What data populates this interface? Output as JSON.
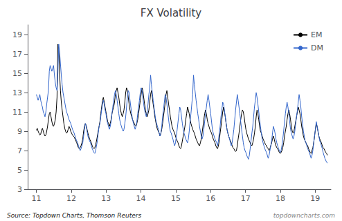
{
  "chart_data": {
    "type": "line",
    "title": "FX Volatility",
    "annotations": [
      "Source: Topdown Charts, Thomson Reuters",
      "topdowncharts.com"
    ],
    "xlim": [
      10.75,
      19.45
    ],
    "ylim": [
      3,
      20
    ],
    "xticks": [
      11,
      12,
      13,
      14,
      15,
      16,
      17,
      18,
      19
    ],
    "yticks": [
      3,
      5,
      7,
      9,
      11,
      13,
      15,
      17,
      19
    ],
    "grid": false,
    "legend": "upper right",
    "x": [
      11,
      11.0246,
      11.0493,
      11.0739,
      11.0985,
      11.1232,
      11.1478,
      11.1724,
      11.1971,
      11.2217,
      11.2463,
      11.2709,
      11.2956,
      11.3202,
      11.3448,
      11.3695,
      11.3941,
      11.4187,
      11.4434,
      11.468,
      11.4926,
      11.5173,
      11.5419,
      11.5665,
      11.5912,
      11.6158,
      11.6404,
      11.665,
      11.6897,
      11.7143,
      11.7389,
      11.7636,
      11.7882,
      11.8128,
      11.8375,
      11.8621,
      11.8867,
      11.9114,
      11.936,
      11.9606,
      11.9853,
      12.0099,
      12.0345,
      12.0591,
      12.0838,
      12.1084,
      12.133,
      12.1577,
      12.1823,
      12.2069,
      12.2316,
      12.2562,
      12.2808,
      12.3055,
      12.3301,
      12.3547,
      12.3794,
      12.404,
      12.4286,
      12.4532,
      12.4779,
      12.5025,
      12.5271,
      12.5518,
      12.5764,
      12.601,
      12.6257,
      12.6503,
      12.6749,
      12.6996,
      12.7242,
      12.7488,
      12.7735,
      12.7981,
      12.8227,
      12.8473,
      12.872,
      12.8966,
      12.9212,
      12.9459,
      12.9705,
      12.9951,
      13.0198,
      13.0444,
      13.069,
      13.0937,
      13.1183,
      13.1429,
      13.1676,
      13.1922,
      13.2168,
      13.2414,
      13.2661,
      13.2907,
      13.3153,
      13.34,
      13.3646,
      13.3892,
      13.4139,
      13.4385,
      13.4631,
      13.4878,
      13.5124,
      13.537,
      13.5617,
      13.5863,
      13.6109,
      13.6355,
      13.6602,
      13.6848,
      13.7094,
      13.7341,
      13.7587,
      13.7833,
      13.808,
      13.8326,
      13.8572,
      13.8819,
      13.9065,
      13.9311,
      13.9558,
      13.9804,
      14.005,
      14.0296,
      14.0543,
      14.0789,
      14.1035,
      14.1282,
      14.1528,
      14.1774,
      14.2021,
      14.2267,
      14.2513,
      14.276,
      14.3006,
      14.3252,
      14.3499,
      14.3745,
      14.3991,
      14.4237,
      14.4484,
      14.473,
      14.4976,
      14.5223,
      14.5469,
      14.5715,
      14.5962,
      14.6208,
      14.6454,
      14.6701,
      14.6947,
      14.7193,
      14.744,
      14.7686,
      14.7932,
      14.8178,
      14.8425,
      14.8671,
      14.8917,
      14.9164,
      14.941,
      14.9656,
      14.9903,
      15.0149,
      15.0395,
      15.0642,
      15.0888,
      15.1134,
      15.1381,
      15.1627,
      15.1873,
      15.2119,
      15.2366,
      15.2612,
      15.2858,
      15.3105,
      15.3351,
      15.3597,
      15.3844,
      15.409,
      15.4336,
      15.4583,
      15.4829,
      15.5075,
      15.5322,
      15.5568,
      15.5814,
      15.606,
      15.6307,
      15.6553,
      15.6799,
      15.7046,
      15.7292,
      15.7538,
      15.7785,
      15.8031,
      15.8277,
      15.8524,
      15.877,
      15.9016,
      15.9263,
      15.9509,
      15.9755,
      16.0001,
      16.0248,
      16.0494,
      16.074,
      16.0987,
      16.1233,
      16.1479,
      16.1726,
      16.1972,
      16.2218,
      16.2465,
      16.2711,
      16.2957,
      16.3204,
      16.345,
      16.3696,
      16.3942,
      16.4189,
      16.4435,
      16.4681,
      16.4928,
      16.5174,
      16.542,
      16.5667,
      16.5913,
      16.6159,
      16.6406,
      16.6652,
      16.6898,
      16.7145,
      16.7391,
      16.7637,
      16.7883,
      16.813,
      16.8376,
      16.8622,
      16.8869,
      16.9115,
      16.9361,
      16.9608,
      16.9854,
      17.01,
      17.0347,
      17.0593,
      17.0839,
      17.1086,
      17.1332,
      17.1578,
      17.1824,
      17.2071,
      17.2317,
      17.2563,
      17.281,
      17.3056,
      17.3302,
      17.3549,
      17.3795,
      17.4041,
      17.4288,
      17.4534,
      17.478,
      17.5027,
      17.5273,
      17.5519,
      17.5765,
      17.6012,
      17.6258,
      17.6504,
      17.6751,
      17.6997,
      17.7243,
      17.749,
      17.7736,
      17.7982,
      17.8229,
      17.8475,
      17.8721,
      17.8968,
      17.9214,
      17.946,
      17.9706,
      17.9953,
      18.0199,
      18.0445,
      18.0692,
      18.0938,
      18.1184,
      18.1431,
      18.1677,
      18.1923,
      18.217,
      18.2416,
      18.2662,
      18.2909,
      18.3155,
      18.3401,
      18.3647,
      18.3894,
      18.414,
      18.4386,
      18.4633,
      18.4879,
      18.5125,
      18.5372,
      18.5618,
      18.5864,
      18.6111,
      18.6357,
      18.6603,
      18.685,
      18.7096,
      18.7342,
      18.7588,
      18.7835,
      18.8081,
      18.8327,
      18.8574,
      18.882,
      18.9066,
      18.9313,
      18.9559,
      18.9805,
      19.0052,
      19.0298,
      19.0544,
      19.0791,
      19.1037,
      19.1283,
      19.1529,
      19.1776,
      19.2022,
      19.2268,
      19.2515,
      19.2761,
      19.3007,
      19.3254,
      19.35
    ],
    "series": [
      {
        "name": "EM",
        "color": "#000000",
        "values": [
          9.1,
          9.3,
          9.0,
          8.8,
          8.6,
          8.7,
          9.1,
          9.3,
          9.0,
          8.7,
          8.5,
          8.6,
          9.0,
          9.5,
          10.2,
          10.8,
          11.0,
          10.5,
          10.0,
          9.6,
          9.5,
          9.8,
          10.2,
          11.0,
          12.5,
          18.0,
          17.5,
          15.0,
          13.2,
          12.0,
          11.2,
          10.5,
          9.8,
          9.3,
          9.0,
          8.8,
          8.9,
          9.2,
          9.5,
          9.3,
          9.0,
          8.8,
          8.6,
          8.5,
          8.4,
          8.2,
          8.0,
          7.8,
          7.5,
          7.3,
          7.2,
          7.3,
          7.5,
          7.8,
          8.2,
          9.0,
          9.5,
          9.8,
          9.6,
          9.2,
          8.8,
          8.5,
          8.2,
          8.0,
          7.8,
          7.5,
          7.3,
          7.2,
          7.3,
          7.6,
          8.0,
          8.5,
          9.0,
          9.5,
          10.0,
          10.8,
          11.5,
          12.2,
          12.5,
          12.0,
          11.5,
          11.0,
          10.5,
          10.0,
          9.8,
          9.5,
          9.8,
          10.2,
          10.8,
          11.2,
          11.5,
          12.0,
          12.8,
          13.2,
          13.5,
          13.0,
          12.5,
          11.8,
          11.2,
          10.8,
          10.5,
          10.8,
          11.2,
          12.0,
          13.0,
          13.5,
          13.2,
          12.5,
          11.8,
          11.2,
          10.8,
          10.5,
          10.2,
          10.0,
          9.8,
          9.6,
          9.5,
          9.8,
          10.2,
          10.8,
          11.5,
          12.2,
          12.8,
          13.5,
          13.2,
          12.5,
          11.8,
          11.2,
          10.8,
          10.5,
          10.8,
          11.2,
          12.0,
          12.8,
          13.2,
          12.5,
          11.8,
          11.2,
          10.5,
          10.0,
          9.5,
          9.2,
          9.0,
          8.8,
          8.5,
          8.8,
          9.2,
          9.8,
          10.5,
          11.2,
          12.0,
          12.8,
          13.2,
          12.5,
          11.8,
          11.2,
          10.5,
          10.0,
          9.5,
          9.2,
          9.0,
          8.8,
          8.5,
          8.2,
          8.0,
          7.8,
          7.5,
          7.3,
          7.2,
          7.5,
          8.0,
          8.5,
          9.0,
          9.5,
          10.2,
          10.8,
          11.5,
          11.2,
          10.8,
          10.2,
          9.8,
          9.5,
          9.2,
          9.0,
          8.8,
          8.5,
          8.2,
          8.0,
          7.8,
          7.6,
          7.5,
          7.8,
          8.2,
          8.8,
          9.5,
          10.2,
          10.8,
          11.2,
          10.8,
          10.2,
          9.8,
          9.5,
          9.2,
          9.0,
          8.8,
          8.5,
          8.2,
          8.0,
          7.8,
          7.5,
          7.3,
          7.2,
          7.5,
          8.0,
          8.8,
          9.5,
          10.2,
          11.0,
          11.5,
          11.0,
          10.5,
          9.8,
          9.2,
          8.8,
          8.5,
          8.2,
          8.0,
          7.8,
          7.5,
          7.3,
          7.2,
          7.0,
          6.9,
          7.0,
          7.5,
          8.2,
          8.8,
          9.5,
          10.2,
          10.8,
          11.2,
          11.0,
          10.5,
          9.8,
          9.2,
          8.8,
          8.5,
          8.2,
          8.0,
          7.8,
          7.6,
          7.5,
          7.8,
          8.2,
          8.8,
          9.5,
          10.5,
          11.2,
          10.8,
          10.2,
          9.5,
          9.0,
          8.8,
          8.5,
          8.2,
          8.0,
          7.8,
          7.6,
          7.5,
          7.3,
          7.2,
          7.0,
          7.2,
          7.5,
          7.8,
          8.2,
          8.5,
          8.2,
          7.8,
          7.5,
          7.3,
          7.2,
          7.0,
          6.8,
          6.7,
          6.8,
          7.0,
          7.3,
          7.8,
          8.5,
          9.0,
          9.5,
          10.2,
          10.8,
          11.2,
          10.8,
          10.2,
          9.5,
          9.0,
          8.8,
          9.0,
          9.5,
          10.0,
          10.5,
          11.0,
          11.5,
          11.2,
          10.8,
          10.2,
          9.5,
          9.0,
          8.5,
          8.2,
          8.0,
          7.8,
          7.6,
          7.5,
          7.2,
          7.0,
          6.8,
          6.7,
          7.0,
          7.3,
          7.8,
          8.5,
          9.2,
          9.8,
          9.5,
          9.0,
          8.5,
          8.2,
          8.0,
          7.8,
          7.5,
          7.3,
          7.2,
          7.0,
          6.8,
          6.7,
          6.5
        ]
      },
      {
        "name": "DM",
        "color": "#3366cc",
        "values": [
          12.8,
          12.5,
          12.2,
          12.5,
          12.8,
          12.2,
          11.8,
          11.5,
          11.0,
          10.8,
          10.5,
          11.0,
          11.8,
          12.5,
          13.2,
          15.2,
          15.8,
          15.5,
          15.2,
          15.5,
          15.8,
          14.8,
          14.0,
          13.5,
          13.2,
          15.0,
          18.0,
          17.2,
          16.0,
          14.8,
          13.8,
          13.0,
          12.5,
          12.0,
          11.5,
          11.0,
          10.8,
          10.5,
          10.2,
          10.0,
          9.8,
          9.5,
          9.2,
          9.0,
          8.8,
          8.5,
          8.2,
          8.0,
          7.8,
          7.5,
          7.2,
          7.0,
          7.2,
          7.5,
          7.8,
          8.5,
          9.2,
          9.8,
          9.5,
          9.0,
          8.5,
          8.2,
          8.0,
          7.8,
          7.5,
          7.2,
          7.0,
          6.8,
          6.7,
          7.0,
          7.5,
          8.0,
          8.8,
          9.5,
          9.8,
          10.5,
          11.2,
          11.8,
          12.2,
          11.8,
          11.2,
          10.8,
          10.2,
          9.8,
          9.5,
          9.2,
          9.5,
          10.0,
          10.8,
          11.5,
          12.2,
          12.8,
          13.2,
          12.8,
          12.2,
          11.5,
          10.8,
          10.2,
          9.8,
          9.5,
          9.2,
          9.0,
          9.2,
          9.8,
          10.5,
          11.5,
          12.5,
          13.2,
          13.0,
          12.2,
          11.5,
          10.8,
          10.2,
          9.8,
          9.5,
          9.2,
          9.5,
          10.0,
          10.8,
          11.5,
          12.2,
          13.0,
          13.5,
          13.2,
          12.5,
          11.8,
          11.2,
          10.8,
          10.5,
          11.0,
          11.8,
          12.8,
          13.5,
          14.8,
          13.8,
          13.0,
          12.2,
          11.5,
          10.8,
          10.2,
          9.8,
          9.5,
          9.2,
          8.8,
          8.5,
          8.8,
          9.5,
          10.5,
          11.2,
          12.0,
          12.8,
          12.5,
          11.8,
          11.0,
          10.2,
          9.5,
          9.0,
          8.8,
          8.5,
          8.2,
          7.8,
          7.5,
          7.8,
          8.5,
          9.2,
          10.0,
          10.8,
          11.5,
          11.2,
          10.5,
          9.8,
          9.2,
          8.8,
          8.5,
          8.2,
          8.0,
          7.8,
          8.2,
          9.0,
          10.0,
          10.8,
          11.8,
          12.8,
          14.8,
          13.8,
          13.0,
          12.2,
          11.5,
          10.8,
          10.2,
          9.5,
          9.0,
          8.5,
          8.2,
          8.5,
          9.2,
          10.0,
          10.8,
          11.5,
          12.2,
          12.8,
          12.2,
          11.5,
          10.8,
          10.0,
          9.2,
          8.8,
          8.5,
          8.2,
          8.0,
          7.8,
          7.5,
          8.0,
          8.8,
          9.5,
          10.5,
          11.2,
          12.0,
          11.8,
          11.2,
          10.5,
          9.8,
          9.2,
          8.8,
          8.5,
          8.2,
          7.8,
          7.5,
          7.8,
          8.5,
          9.2,
          10.2,
          11.2,
          12.0,
          12.8,
          12.2,
          11.5,
          10.8,
          10.0,
          9.2,
          8.5,
          7.8,
          7.3,
          7.0,
          6.8,
          6.5,
          6.3,
          6.1,
          6.5,
          7.2,
          8.0,
          8.8,
          9.5,
          10.5,
          11.5,
          12.2,
          13.0,
          12.5,
          11.8,
          11.0,
          10.2,
          9.5,
          8.8,
          8.2,
          7.8,
          7.5,
          7.2,
          7.0,
          6.8,
          6.5,
          6.2,
          6.5,
          7.0,
          7.5,
          8.0,
          8.8,
          9.5,
          9.2,
          8.8,
          8.2,
          7.8,
          7.5,
          7.2,
          7.0,
          6.8,
          7.0,
          7.5,
          8.2,
          9.0,
          10.0,
          10.8,
          11.5,
          12.0,
          11.5,
          10.8,
          10.0,
          9.2,
          8.8,
          8.5,
          8.2,
          8.5,
          9.0,
          9.8,
          10.5,
          11.2,
          12.0,
          12.8,
          12.2,
          11.5,
          10.5,
          9.8,
          9.0,
          8.5,
          8.0,
          7.8,
          7.5,
          7.2,
          7.0,
          6.8,
          6.5,
          6.2,
          6.5,
          7.0,
          7.8,
          8.5,
          9.2,
          10.0,
          9.5,
          9.0,
          8.5,
          8.0,
          7.8,
          7.5,
          7.2,
          6.8,
          6.5,
          6.2,
          6.0,
          5.8,
          5.7
        ]
      }
    ]
  }
}
